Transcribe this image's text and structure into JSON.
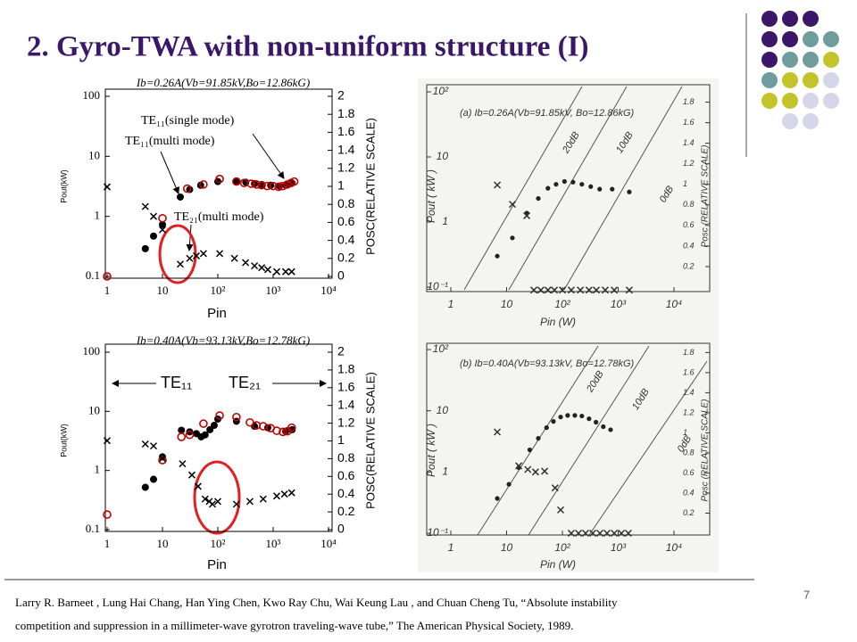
{
  "title": "2. Gyro-TWA with non-uniform structure (I)",
  "citation": [
    "Larry R. Barneet , Lung Hai Chang, Han Ying Chen, Kwo Ray Chu, Wai Keung Lau , and Chuan Cheng Tu, “Absolute instability",
    "competition and suppression in a millimeter-wave gyrotron traveling-wave tube,” The American Physical Society, 1989."
  ],
  "page_number": "7",
  "chart_data": [
    {
      "type": "scatter",
      "title": "Ib=0.26A(Vb=91.85kV,Bo=12.86kG)",
      "x_label": "Pin",
      "y_label": "Pout(kW)",
      "y2_label": "POSC(RELATIVE SCALE)",
      "log_x": true,
      "log_y": true,
      "xlim": [
        1,
        10000
      ],
      "ylim": [
        0.1,
        100
      ],
      "y2lim": [
        0,
        2
      ],
      "xticks": [
        1,
        10,
        {
          "value": 100,
          "label": "10²"
        },
        {
          "value": 1000,
          "label": "10³"
        },
        {
          "value": 10000,
          "label": "10⁴"
        }
      ],
      "yticks": [
        0.1,
        1,
        10,
        100
      ],
      "y2ticks": [
        0,
        0.2,
        0.4,
        0.6,
        0.8,
        1,
        1.2,
        1.4,
        1.6,
        1.8,
        2
      ],
      "annotations": [
        "TE₁₁(single mode)",
        "TE₁₁(multi mode)",
        "TE₂₁(multi mode)"
      ],
      "series": [
        {
          "marker": "dot",
          "color": "#000000",
          "x": [
            4.9,
            6.9,
            10,
            21,
            31,
            49,
            100,
            217,
            320,
            460,
            620,
            900,
            1300,
            1700,
            2200
          ],
          "values": [
            0.29,
            0.47,
            0.73,
            2.1,
            2.8,
            3.3,
            3.8,
            3.9,
            3.7,
            3.5,
            3.4,
            3.3,
            3.2,
            3.3,
            3.6
          ]
        },
        {
          "marker": "circle",
          "color": "#c00000",
          "x": [
            1,
            10,
            28,
            55,
            108,
            217,
            300,
            400,
            500,
            620,
            780,
            1000,
            1250,
            1500,
            1800,
            2100,
            2400
          ],
          "values": [
            0.1,
            0.93,
            2.9,
            3.4,
            4.2,
            3.8,
            3.6,
            3.5,
            3.4,
            3.3,
            3.2,
            3.2,
            3.1,
            3.2,
            3.4,
            3.6,
            3.8
          ]
        },
        {
          "marker": "cross",
          "color": "#000000",
          "x": [
            1,
            4.9,
            6.9,
            10,
            21,
            31,
            41,
            55,
            108,
            200,
            317,
            460,
            620,
            800,
            1160,
            1680,
            2160
          ],
          "values": [
            3.1,
            1.46,
            1.0,
            0.6,
            0.16,
            0.2,
            0.22,
            0.24,
            0.24,
            0.2,
            0.17,
            0.15,
            0.14,
            0.13,
            0.12,
            0.12,
            0.12
          ]
        }
      ]
    },
    {
      "type": "scatter",
      "title": "Ib=0.40A(Vb=93.13kV,Bo=12.78kG)",
      "x_label": "Pin",
      "y_label": "Pout(kW)",
      "y2_label": "POSC(RELATIVE SCALE)",
      "log_x": true,
      "log_y": true,
      "xlim": [
        1,
        10000
      ],
      "ylim": [
        0.1,
        100
      ],
      "y2lim": [
        0,
        2
      ],
      "xticks": [
        1,
        10,
        {
          "value": 100,
          "label": "10²"
        },
        {
          "value": 1000,
          "label": "10³"
        },
        {
          "value": 10000,
          "label": "10⁴"
        }
      ],
      "yticks": [
        0.1,
        1,
        10,
        100
      ],
      "y2ticks": [
        0,
        0.2,
        0.4,
        0.6,
        0.8,
        1,
        1.2,
        1.4,
        1.6,
        1.8,
        2
      ],
      "annotations": [
        "TE₁₁",
        "TE₂₁"
      ],
      "series": [
        {
          "marker": "dot",
          "color": "#000000",
          "x": [
            4.9,
            6.9,
            10,
            22,
            31,
            41,
            50,
            59,
            72,
            86,
            100,
            217,
            460,
            800,
            1680,
            2200
          ],
          "values": [
            0.52,
            0.71,
            1.7,
            4.8,
            4.5,
            4.2,
            3.7,
            4,
            4.9,
            5.8,
            7.4,
            6.8,
            5.6,
            5.3,
            4.6,
            4.9
          ]
        },
        {
          "marker": "circle",
          "color": "#c00000",
          "x": [
            1,
            10,
            22,
            31,
            55,
            108,
            217,
            380,
            500,
            660,
            900,
            1160,
            1500,
            1800,
            2160
          ],
          "values": [
            0.18,
            1.5,
            3.7,
            4,
            6.2,
            8.5,
            8,
            6.5,
            5.8,
            5.6,
            5.2,
            4.7,
            4.5,
            4.6,
            5.3
          ]
        },
        {
          "marker": "cross",
          "color": "#000000",
          "x": [
            1,
            4.9,
            6.9,
            10,
            23,
            34,
            44,
            59,
            70,
            80,
            100,
            217,
            380,
            660,
            1160,
            1600,
            2160
          ],
          "values": [
            3.2,
            2.8,
            2.6,
            1.6,
            1.3,
            0.84,
            0.54,
            0.33,
            0.3,
            0.27,
            0.3,
            0.27,
            0.3,
            0.33,
            0.37,
            0.4,
            0.42
          ]
        }
      ]
    },
    {
      "type": "scatter",
      "title": "(a) Ib=0.26A(Vb=91.85kV, Bo=12.86kG)",
      "x_label": "Pin (W)",
      "y_label": "Pout ( kW )",
      "y2_label": "Posc (RELATIVE SCALE)",
      "log_x": true,
      "log_y": true,
      "xlim": [
        1,
        10000
      ],
      "ylim": [
        0.1,
        100
      ],
      "y2lim": [
        0,
        1.9
      ],
      "xticks": [
        1,
        10,
        {
          "value": 100,
          "label": "10²"
        },
        {
          "value": 1000,
          "label": "10³"
        },
        {
          "value": 10000,
          "label": "10⁴"
        }
      ],
      "yticks": [
        {
          "value": 0.1,
          "label": "10⁻¹"
        },
        1,
        10,
        {
          "value": 100,
          "label": "10²"
        }
      ],
      "y2ticks": [
        0.2,
        0.4,
        0.6,
        0.8,
        1.0,
        1.2,
        1.4,
        1.6,
        1.8
      ],
      "annotations": [
        "20dB",
        "10dB",
        "0dB"
      ],
      "series": [
        {
          "marker": "dot",
          "color": "#222222",
          "x": [
            6.8,
            12.7,
            23,
            37,
            55,
            77,
            109,
            155,
            223,
            322,
            465,
            780,
            1580
          ],
          "values": [
            0.3,
            0.57,
            1.37,
            2.3,
            3.3,
            3.8,
            4.2,
            4.1,
            3.8,
            3.5,
            3.2,
            3.2,
            2.9
          ]
        },
        {
          "marker": "cross",
          "color": "#333333",
          "x": [
            6.8,
            12.7,
            23,
            30.8,
            41,
            55,
            72,
            100,
            144,
            210,
            300,
            405,
            585,
            850,
            1580
          ],
          "values": [
            3.7,
            1.87,
            1.25,
            0.09,
            0.09,
            0.09,
            0.09,
            0.09,
            0.09,
            0.09,
            0.09,
            0.09,
            0.09,
            0.09,
            0.09
          ]
        }
      ]
    },
    {
      "type": "scatter",
      "title": "(b) Ib=0.40A(Vb=93.13kV, Bo=12.78kG)",
      "x_label": "Pin (W)",
      "y_label": "Pout ( kW )",
      "y2_label": "Posc (RELATIVE SCALE)",
      "log_x": true,
      "log_y": true,
      "xlim": [
        1,
        10000
      ],
      "ylim": [
        0.1,
        100
      ],
      "y2lim": [
        0,
        1.83
      ],
      "xticks": [
        1,
        10,
        {
          "value": 100,
          "label": "10²"
        },
        {
          "value": 1000,
          "label": "10³"
        },
        {
          "value": 10000,
          "label": "10⁴"
        }
      ],
      "yticks": [
        {
          "value": 0.1,
          "label": "10⁻¹"
        },
        1,
        10,
        {
          "value": 100,
          "label": "10²"
        }
      ],
      "y2ticks": [
        0.2,
        0.4,
        0.6,
        0.8,
        1.0,
        1.2,
        1.4,
        1.6,
        1.8
      ],
      "annotations": [
        "20dB",
        "10dB",
        "0dB"
      ],
      "series": [
        {
          "marker": "dot",
          "color": "#222222",
          "x": [
            6.8,
            11,
            16.5,
            26,
            37,
            52,
            69,
            93,
            124,
            167,
            223,
            300,
            400,
            540,
            730
          ],
          "values": [
            0.37,
            0.63,
            1.18,
            2.3,
            3.55,
            5.3,
            6.7,
            7.9,
            8.4,
            8.4,
            8.2,
            7.4,
            6.5,
            5.5,
            4.9
          ]
        },
        {
          "marker": "cross",
          "color": "#333333",
          "x": [
            6.8,
            16.5,
            24,
            33,
            48,
            74,
            93,
            144,
            194,
            260,
            350,
            470,
            630,
            850,
            1140,
            1520
          ],
          "values": [
            4.5,
            1.26,
            1.1,
            1.0,
            1.03,
            0.55,
            0.24,
            0.1,
            0.1,
            0.1,
            0.1,
            0.1,
            0.1,
            0.1,
            0.1,
            0.1
          ]
        }
      ]
    }
  ]
}
